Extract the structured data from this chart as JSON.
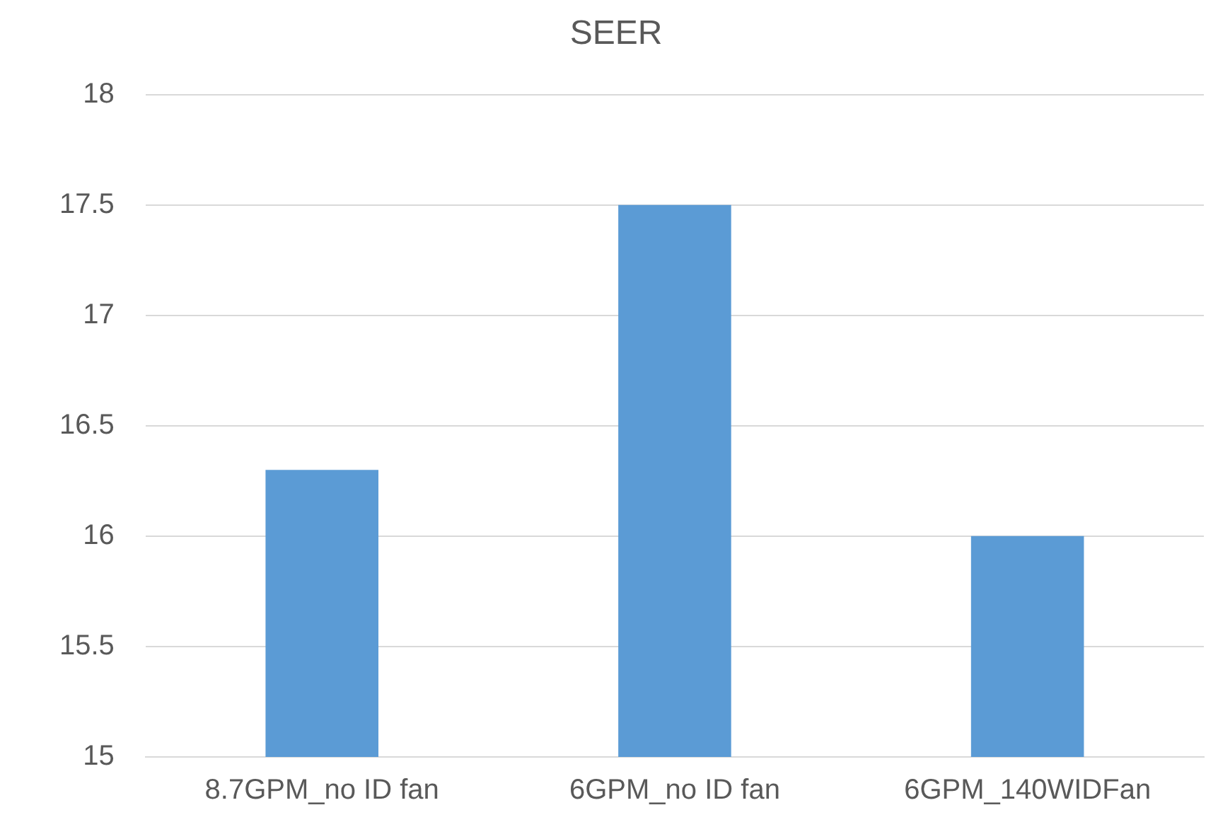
{
  "chart_data": {
    "type": "bar",
    "title": "SEER",
    "categories": [
      "8.7GPM_no ID fan",
      "6GPM_no ID fan",
      "6GPM_140WIDFan"
    ],
    "values": [
      16.3,
      17.5,
      16.0
    ],
    "color": "#5b9bd5",
    "ylim": [
      15,
      18
    ],
    "yticks": [
      15,
      15.5,
      16,
      16.5,
      17,
      17.5,
      18
    ],
    "grid": "y",
    "legend": false
  }
}
